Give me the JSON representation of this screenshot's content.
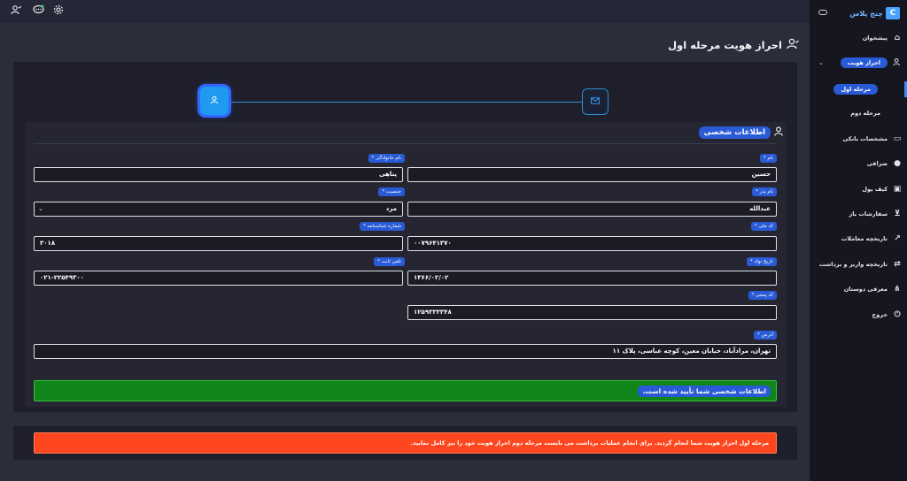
{
  "topbar": {
    "icons": [
      "user-check-icon",
      "chat-icon",
      "gear-icon"
    ]
  },
  "sidebar": {
    "logo_text": "چنج پلاس",
    "items": [
      {
        "label": "پیشخوان",
        "icon": "home-icon"
      },
      {
        "label": "احراز هویت",
        "icon": "user-check-icon",
        "expanded": true
      },
      {
        "label": "مرحله اول",
        "sub": true,
        "active": true
      },
      {
        "label": "مرحله دوم",
        "sub": true
      },
      {
        "label": "مشخصات بانکی",
        "icon": "card-icon"
      },
      {
        "label": "صرافی",
        "icon": "coins-icon"
      },
      {
        "label": "کیف پول",
        "icon": "wallet-icon"
      },
      {
        "label": "سفارشات باز",
        "icon": "cart-icon"
      },
      {
        "label": "تاریخچه معاملات",
        "icon": "chart-icon"
      },
      {
        "label": "تاریخچه واریز و برداشت",
        "icon": "transfer-icon"
      },
      {
        "label": "معرفی دوستان",
        "icon": "share-icon"
      },
      {
        "label": "خروج",
        "icon": "power-icon"
      }
    ]
  },
  "page": {
    "title": "احراز هویت مرحله اول"
  },
  "form": {
    "section_title": "اطلاعات شخصی",
    "fields": {
      "first_name": {
        "label": "نام *",
        "value": "حسین"
      },
      "last_name": {
        "label": "نام خانوادگی *",
        "value": "پناهی"
      },
      "father_name": {
        "label": "نام پدر *",
        "value": "عبدالله"
      },
      "gender": {
        "label": "جنسیت *",
        "value": "مرد"
      },
      "national_code": {
        "label": "کد ملی *",
        "value": "۰۰۷۹۶۴۱۳۷۰"
      },
      "id_number": {
        "label": "شماره شناسنامه *",
        "value": "۳۰۱۸"
      },
      "birth_date": {
        "label": "تاریخ تولد *",
        "value": "۱۳۶۶/۰۲/۰۲"
      },
      "landline": {
        "label": "تلفن ثابت *",
        "value": "۰۲۱-۲۲۵۴۹۳۰۰"
      },
      "postal_code": {
        "label": "کد پستی *",
        "value": "۱۲۵۹۳۳۳۳۴۸"
      },
      "address": {
        "label": "آدرس *",
        "value": "تهران، مرادآباد، خیابان معین، کوچه عباسی، پلاک ۱۱"
      }
    },
    "success_message": "اطلاعات شخصی شما تأیید شده است."
  },
  "notice": {
    "message": "مرحله اول احراز هویت شما انجام گردید. برای انجام عملیات برداشت می بایست مرحله دوم احراز هویت خود را نیز کامل نمایید."
  },
  "colors": {
    "accent": "#2a5bd7",
    "step_active": "#1e9bf0",
    "success": "#11851a",
    "warning": "#ff471f"
  }
}
